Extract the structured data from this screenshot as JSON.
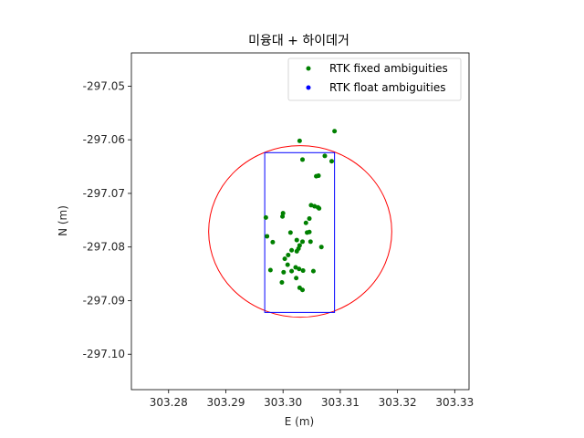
{
  "chart_data": {
    "type": "scatter",
    "title": "미융대 + 하이데거",
    "xlabel": "E (m)",
    "ylabel": "N (m)",
    "xlim": [
      303.2735,
      303.3325
    ],
    "ylim": [
      -297.1066,
      -297.0438
    ],
    "xticks": [
      303.28,
      303.29,
      303.3,
      303.31,
      303.32,
      303.33
    ],
    "xtick_labels": [
      "303.28",
      "303.29",
      "303.30",
      "303.31",
      "303.32",
      "303.33"
    ],
    "yticks": [
      -297.05,
      -297.06,
      -297.07,
      -297.08,
      -297.09,
      -297.1
    ],
    "ytick_labels": [
      "-297.05",
      "-297.06",
      "-297.07",
      "-297.08",
      "-297.09",
      "-297.10"
    ],
    "grid": false,
    "legend_placement": "top-right",
    "series": [
      {
        "name": "RTK fixed ambiguities",
        "color": "#008000",
        "marker": "point",
        "points": [
          [
            303.309,
            -297.0584
          ],
          [
            303.3029,
            -297.0602
          ],
          [
            303.3073,
            -297.063
          ],
          [
            303.3085,
            -297.064
          ],
          [
            303.3034,
            -297.0637
          ],
          [
            303.3058,
            -297.0668
          ],
          [
            303.3062,
            -297.0667
          ],
          [
            303.3049,
            -297.0722
          ],
          [
            303.3055,
            -297.0724
          ],
          [
            303.3061,
            -297.0726
          ],
          [
            303.3063,
            -297.0728
          ],
          [
            303.3,
            -297.0737
          ],
          [
            303.2999,
            -297.0743
          ],
          [
            303.297,
            -297.0745
          ],
          [
            303.3046,
            -297.0747
          ],
          [
            303.304,
            -297.0755
          ],
          [
            303.3046,
            -297.0772
          ],
          [
            303.3042,
            -297.0773
          ],
          [
            303.3013,
            -297.0773
          ],
          [
            303.2972,
            -297.078
          ],
          [
            303.3024,
            -297.0787
          ],
          [
            303.3034,
            -297.079
          ],
          [
            303.3048,
            -297.079
          ],
          [
            303.2982,
            -297.0791
          ],
          [
            303.3029,
            -297.0797
          ],
          [
            303.3027,
            -297.0803
          ],
          [
            303.3015,
            -297.0806
          ],
          [
            303.3024,
            -297.0808
          ],
          [
            303.3067,
            -297.08
          ],
          [
            303.3009,
            -297.0815
          ],
          [
            303.3003,
            -297.0822
          ],
          [
            303.3008,
            -297.0833
          ],
          [
            303.3022,
            -297.0838
          ],
          [
            303.3028,
            -297.0841
          ],
          [
            303.3015,
            -297.0845
          ],
          [
            303.3035,
            -297.0844
          ],
          [
            303.3053,
            -297.0845
          ],
          [
            303.2978,
            -297.0843
          ],
          [
            303.3001,
            -297.0847
          ],
          [
            303.3023,
            -297.0858
          ],
          [
            303.2998,
            -297.0866
          ],
          [
            303.3029,
            -297.0876
          ],
          [
            303.3034,
            -297.088
          ]
        ]
      },
      {
        "name": "RTK float ambiguities",
        "color": "#0000ff",
        "marker": "point",
        "points": []
      }
    ],
    "annotations": [
      {
        "kind": "circle",
        "color": "#ff0000",
        "center": [
          303.303,
          -297.0771
        ],
        "radius": 0.016
      },
      {
        "kind": "rectangle",
        "color": "#0000ff",
        "x": [
          303.2968,
          303.309
        ],
        "y": [
          -297.0922,
          -297.0624
        ]
      }
    ]
  }
}
